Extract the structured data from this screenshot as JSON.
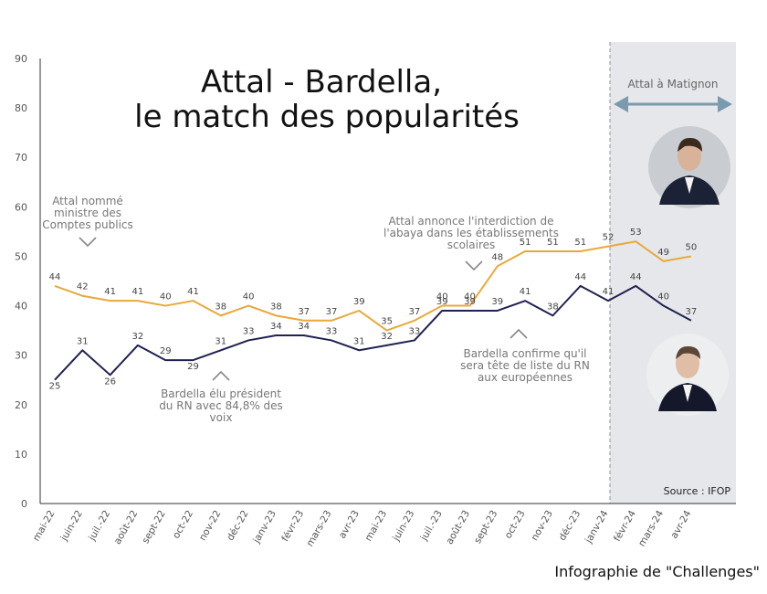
{
  "chart_data": {
    "type": "line",
    "title_lines": [
      "Attal - Bardella,",
      "le match des popularités"
    ],
    "categories": [
      "mai-22",
      "juin-22",
      "juil.-22",
      "août-22",
      "sept-22",
      "oct-22",
      "nov-22",
      "déc-22",
      "janv-23",
      "févr-23",
      "mars-23",
      "avr-23",
      "mai-23",
      "juin-23",
      "juil.-23",
      "août-23",
      "sept-23",
      "oct-23",
      "nov-23",
      "déc-23",
      "janv-24",
      "févr-24",
      "mars-24",
      "avr-24"
    ],
    "ylim": [
      0,
      90
    ],
    "yticks": [
      0,
      10,
      20,
      30,
      40,
      50,
      60,
      70,
      80,
      90
    ],
    "series": [
      {
        "key": "attal",
        "color": "#e8a93a",
        "values": [
          44,
          42,
          41,
          41,
          40,
          41,
          38,
          40,
          38,
          37,
          37,
          39,
          35,
          37,
          40,
          40,
          48,
          51,
          51,
          51,
          52,
          53,
          49,
          50
        ]
      },
      {
        "key": "bardella",
        "color": "#1f2150",
        "values": [
          25,
          31,
          26,
          32,
          29,
          29,
          31,
          33,
          34,
          34,
          33,
          31,
          32,
          33,
          39,
          39,
          39,
          41,
          38,
          44,
          41,
          44,
          40,
          37
        ]
      }
    ],
    "highlight_band": {
      "from": "janv-24",
      "to": "avr-24",
      "label": "Attal à Matignon",
      "color": "#e6e7ea"
    },
    "annotations": [
      {
        "key": "attal-ministre",
        "lines": [
          "Attal nommé",
          "ministre des",
          "Comptes publics"
        ]
      },
      {
        "key": "abaya",
        "lines": [
          "Attal annonce l'interdiction de",
          "l'abaya dans les établissements",
          "scolaires"
        ]
      },
      {
        "key": "bardella-rn",
        "lines": [
          "Bardella élu président",
          "du RN avec 84,8% des",
          "voix"
        ]
      },
      {
        "key": "bardella-liste",
        "lines": [
          "Bardella confirme qu'il",
          "sera tête de liste du RN",
          "aux européennes"
        ]
      }
    ],
    "source": "Source : IFOP",
    "credit": "Infographie de \"Challenges\"",
    "grid": false
  }
}
